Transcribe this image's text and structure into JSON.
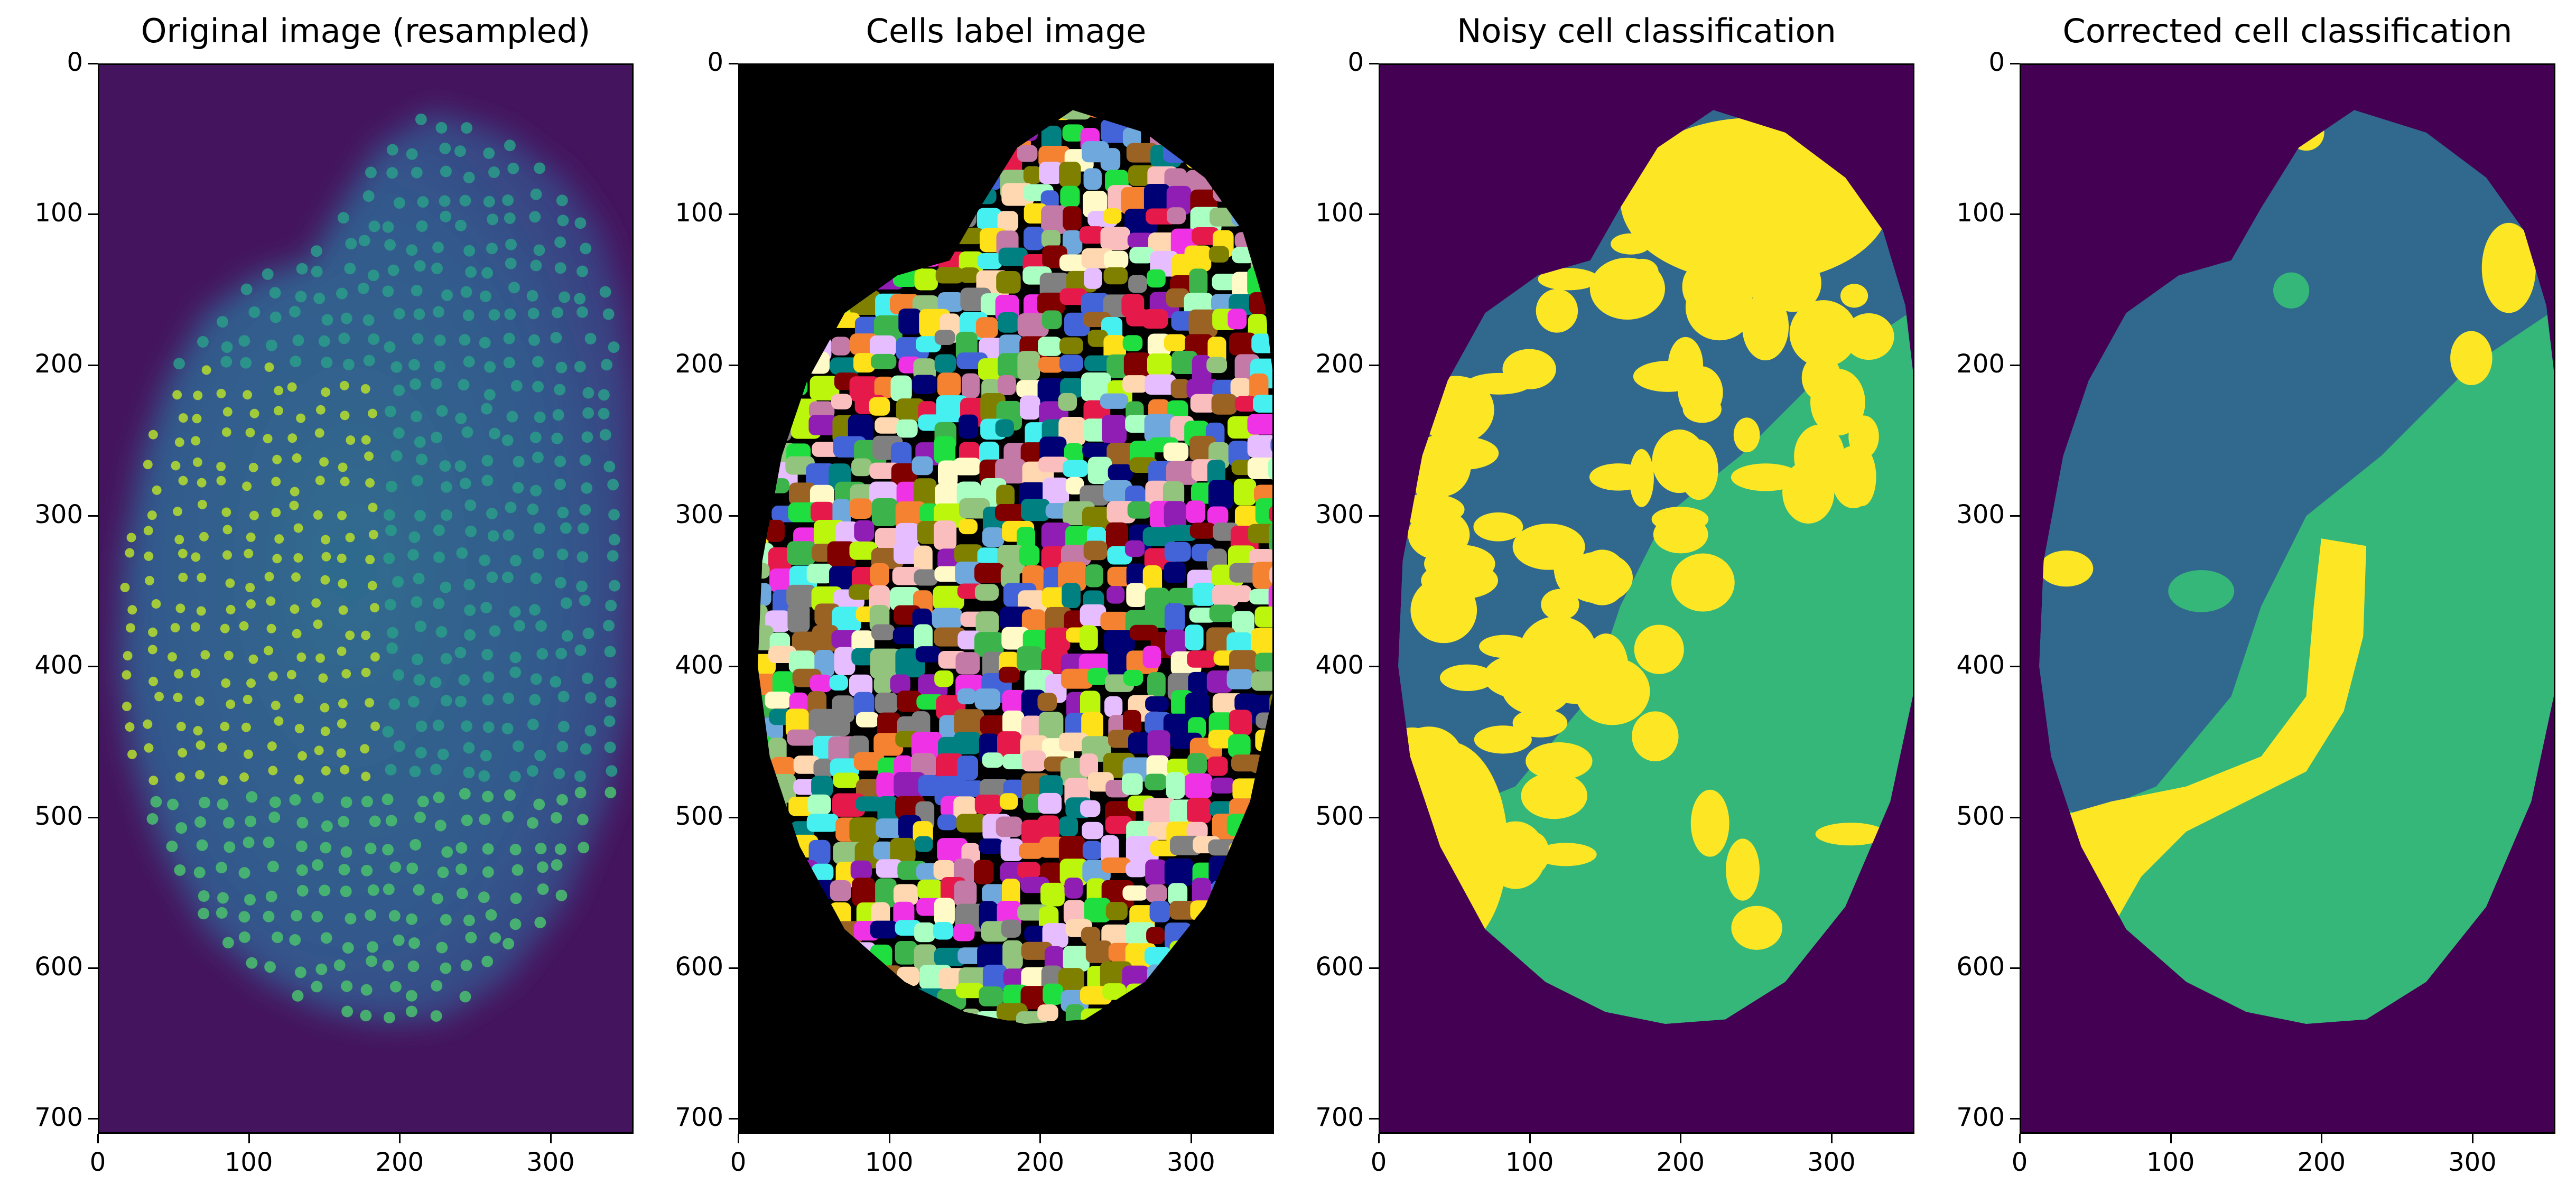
{
  "panels": [
    {
      "title": "Original image (resampled)",
      "kind": "original"
    },
    {
      "title": "Cells label image",
      "kind": "labels"
    },
    {
      "title": "Noisy cell classification",
      "kind": "noisy"
    },
    {
      "title": "Corrected cell classification",
      "kind": "corrected"
    }
  ],
  "axes": {
    "yticks": [
      "0",
      "100",
      "200",
      "300",
      "400",
      "500",
      "600",
      "700"
    ],
    "xticks": [
      "0",
      "100",
      "200",
      "300"
    ],
    "ytick_values": [
      0,
      100,
      200,
      300,
      400,
      500,
      600,
      700
    ],
    "xtick_values": [
      0,
      100,
      200,
      300
    ],
    "xlim": [
      0,
      355
    ],
    "ylim": [
      710,
      0
    ]
  },
  "colors": {
    "viridis_dark": "#440154",
    "viridis_blue": "#31688e",
    "viridis_green": "#35b779",
    "viridis_yellow": "#fde725",
    "label_background": "#000000"
  }
}
